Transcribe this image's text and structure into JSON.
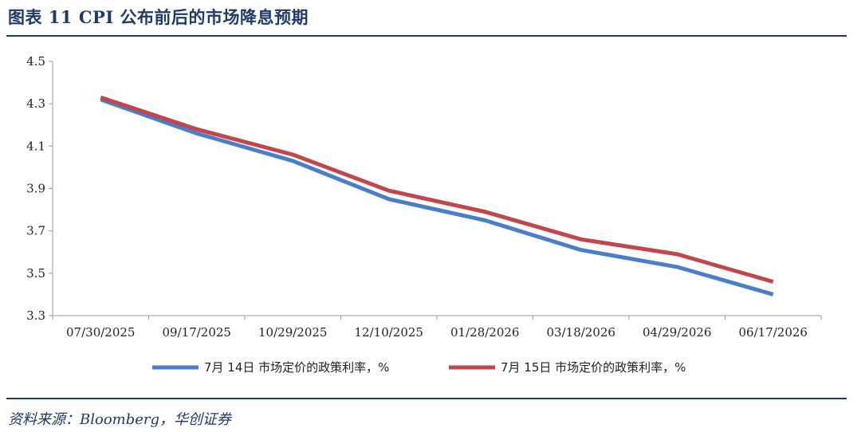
{
  "header": {
    "title": "图表 11   CPI 公布前后的市场降息预期"
  },
  "footer": {
    "source": "资料来源：Bloomberg，华创证券"
  },
  "colors": {
    "frame": "#1f3a66",
    "series_1": "#4a7ec9",
    "series_2": "#c0474b"
  },
  "chart_data": {
    "type": "line",
    "title": "",
    "xlabel": "",
    "ylabel": "",
    "x": [
      "07/30/2025",
      "09/17/2025",
      "10/29/2025",
      "12/10/2025",
      "01/28/2026",
      "03/18/2026",
      "04/29/2026",
      "06/17/2026"
    ],
    "ylim": [
      3.3,
      4.5
    ],
    "yticks": [
      "3.3",
      "3.5",
      "3.7",
      "3.9",
      "4.1",
      "4.3",
      "4.5"
    ],
    "grid": false,
    "legend_position": "bottom",
    "series": [
      {
        "name": "7月 14日 市场定价的政策利率，%",
        "values": [
          4.32,
          4.16,
          4.03,
          3.85,
          3.75,
          3.61,
          3.53,
          3.4
        ]
      },
      {
        "name": "7月 15日 市场定价的政策利率，%",
        "values": [
          4.33,
          4.18,
          4.06,
          3.89,
          3.79,
          3.66,
          3.59,
          3.46
        ]
      }
    ]
  }
}
